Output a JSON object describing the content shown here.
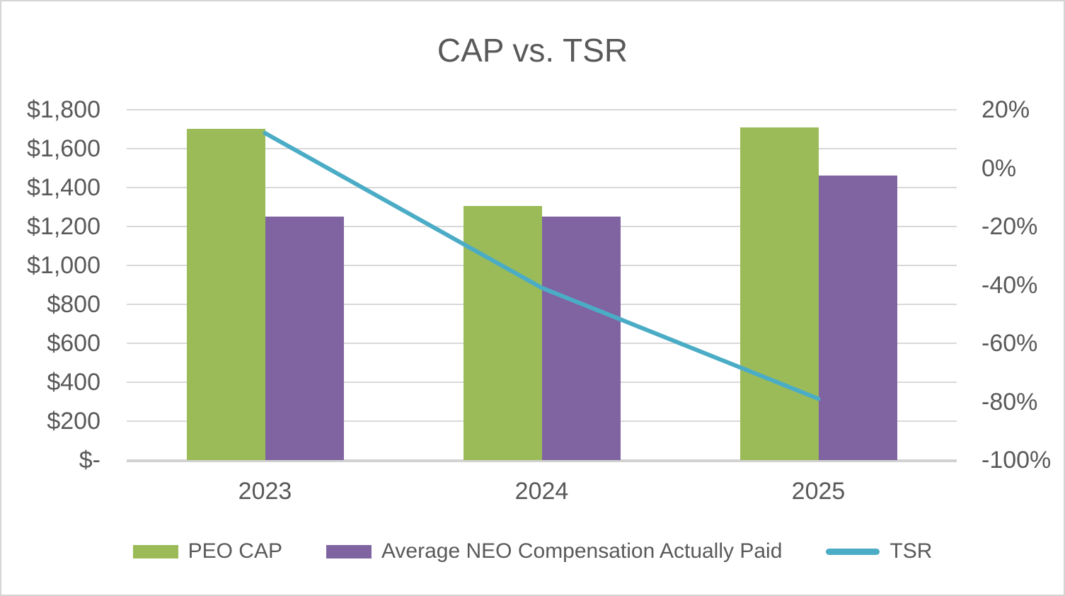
{
  "chart_data": {
    "type": "bar",
    "subtype": "combo-bar-line",
    "title": "CAP vs. TSR",
    "categories": [
      "2023",
      "2024",
      "2025"
    ],
    "series": [
      {
        "name": "PEO CAP",
        "type": "bar",
        "axis": "left",
        "color": "#9bbb59",
        "values": [
          1700,
          1305,
          1710
        ]
      },
      {
        "name": "Average NEO Compensation Actually Paid",
        "type": "bar",
        "axis": "left",
        "color": "#8064a2",
        "values": [
          1250,
          1250,
          1460
        ]
      },
      {
        "name": "TSR",
        "type": "line",
        "axis": "right",
        "color": "#4bacc6",
        "values": [
          12,
          -41,
          -79
        ]
      }
    ],
    "left_axis": {
      "tick_labels": [
        "$1,800",
        "$1,600",
        "$1,400",
        "$1,200",
        "$1,000",
        "$800",
        "$600",
        "$400",
        "$200",
        "$-"
      ],
      "min": 0,
      "max": 1800
    },
    "right_axis": {
      "tick_labels": [
        "20%",
        "0%",
        "-20%",
        "-40%",
        "-60%",
        "-80%",
        "-100%"
      ],
      "min": -100,
      "max": 20
    },
    "grid": true,
    "legend_position": "bottom",
    "colors": {
      "text": "#595959",
      "gridline": "#d9d9d9",
      "background": "#ffffff"
    }
  }
}
